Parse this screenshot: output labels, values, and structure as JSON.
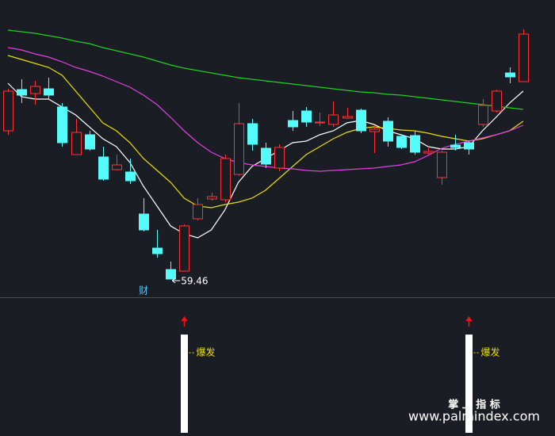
{
  "chart_data": {
    "type": "candlestick",
    "ylim": [
      57.16,
      94.66
    ],
    "up_color": "#ff3232",
    "down_color": "#54fcfc",
    "open": [
      78.16,
      83.36,
      82.86,
      83.46,
      81.16,
      75.16,
      77.66,
      74.86,
      73.26,
      72.96,
      67.66,
      63.36,
      60.66,
      60.46,
      67.06,
      69.56,
      69.46,
      72.66,
      79.06,
      75.96,
      73.46,
      79.46,
      80.66,
      79.16,
      78.96,
      79.76,
      80.76,
      78.06,
      79.36,
      77.46,
      77.56,
      75.36,
      72.26,
      76.36,
      76.66,
      78.96,
      80.66,
      85.46,
      84.36
    ],
    "high": [
      83.46,
      84.66,
      84.46,
      84.86,
      81.66,
      79.66,
      78.16,
      76.16,
      75.16,
      74.66,
      69.66,
      65.66,
      61.66,
      66.36,
      69.66,
      70.36,
      75.16,
      81.66,
      79.66,
      76.66,
      76.46,
      80.66,
      81.16,
      80.46,
      81.86,
      81.06,
      80.96,
      78.86,
      79.86,
      77.66,
      78.16,
      76.16,
      75.66,
      77.66,
      76.96,
      82.16,
      83.36,
      86.16,
      90.96
    ],
    "low": [
      77.66,
      81.66,
      81.46,
      82.16,
      76.16,
      75.16,
      75.66,
      71.86,
      73.16,
      71.46,
      65.46,
      62.16,
      59.46,
      60.46,
      66.86,
      69.36,
      69.16,
      72.46,
      75.66,
      73.46,
      73.06,
      78.16,
      78.66,
      78.76,
      78.66,
      79.66,
      77.86,
      75.36,
      76.16,
      75.86,
      75.16,
      75.06,
      71.36,
      75.66,
      75.16,
      78.66,
      80.46,
      84.16,
      84.36
    ],
    "close": [
      83.16,
      82.66,
      83.76,
      82.66,
      76.66,
      77.96,
      75.86,
      72.06,
      73.86,
      71.86,
      65.66,
      62.66,
      59.46,
      66.16,
      68.86,
      69.86,
      74.66,
      79.06,
      76.46,
      73.96,
      76.06,
      78.66,
      79.26,
      79.26,
      80.16,
      79.96,
      78.16,
      78.36,
      76.86,
      76.06,
      75.46,
      75.56,
      75.46,
      76.06,
      75.86,
      81.36,
      83.16,
      84.96,
      90.36
    ],
    "series": [
      {
        "color": "#ffffff",
        "values": [
          84.16,
          82.46,
          82.16,
          82.16,
          81.16,
          80.16,
          78.66,
          77.16,
          76.16,
          74.16,
          71.16,
          68.66,
          66.16,
          65.16,
          64.66,
          65.66,
          68.16,
          71.66,
          73.66,
          74.66,
          75.66,
          76.66,
          76.86,
          77.66,
          78.16,
          79.16,
          79.46,
          78.96,
          78.16,
          77.66,
          77.16,
          76.16,
          75.86,
          75.86,
          76.16,
          78.16,
          79.86,
          81.66,
          83.16
        ]
      },
      {
        "color": "#e8e000",
        "values": [
          87.66,
          87.16,
          86.66,
          86.16,
          85.16,
          83.16,
          81.16,
          79.16,
          78.16,
          76.66,
          74.66,
          73.16,
          71.66,
          69.66,
          68.66,
          68.46,
          68.86,
          69.16,
          69.66,
          70.66,
          72.16,
          73.66,
          75.16,
          76.16,
          77.16,
          77.96,
          78.46,
          78.66,
          78.46,
          78.26,
          78.16,
          77.86,
          77.46,
          77.16,
          76.86,
          77.16,
          77.66,
          78.16,
          79.36
        ]
      },
      {
        "color": "#e040e0",
        "values": [
          88.66,
          88.36,
          87.86,
          87.46,
          86.86,
          86.16,
          85.66,
          85.06,
          84.36,
          83.66,
          82.66,
          81.46,
          79.86,
          78.16,
          76.66,
          75.46,
          74.66,
          74.16,
          73.86,
          73.66,
          73.46,
          73.36,
          73.16,
          73.06,
          73.16,
          73.26,
          73.36,
          73.46,
          73.66,
          73.86,
          74.26,
          75.06,
          75.96,
          76.46,
          76.86,
          77.26,
          77.66,
          78.16,
          78.86
        ]
      },
      {
        "color": "#20d020",
        "values": [
          90.86,
          90.66,
          90.46,
          90.16,
          89.86,
          89.46,
          89.16,
          88.66,
          88.26,
          87.86,
          87.46,
          86.96,
          86.46,
          86.06,
          85.76,
          85.46,
          85.16,
          84.86,
          84.66,
          84.46,
          84.26,
          84.06,
          83.86,
          83.66,
          83.46,
          83.26,
          83.06,
          82.96,
          82.76,
          82.66,
          82.46,
          82.26,
          82.06,
          81.86,
          81.66,
          81.46,
          81.26,
          81.06,
          80.86
        ]
      }
    ],
    "low_label": {
      "index": 12,
      "value": 59.46
    },
    "annotations": [
      {
        "index": 10,
        "text": "财"
      }
    ],
    "signals": [
      {
        "index": 13,
        "label": "爆发"
      },
      {
        "index": 34,
        "label": "爆发"
      }
    ]
  },
  "watermark": {
    "title": "掌 上 指 标",
    "url": "www.palmindex.com"
  }
}
